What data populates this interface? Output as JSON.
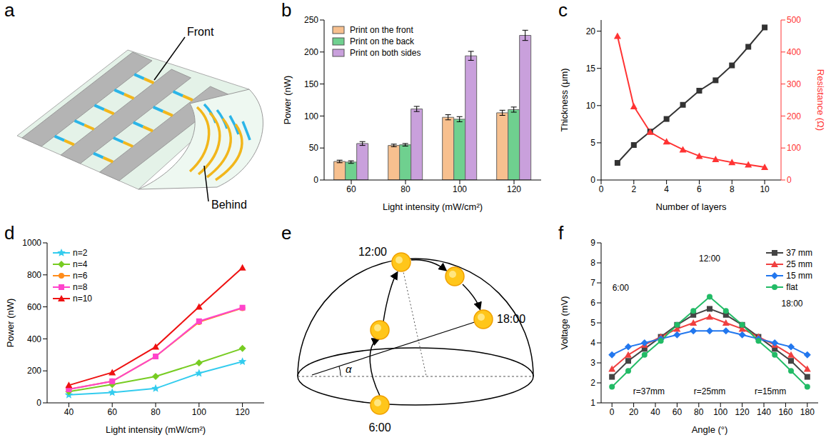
{
  "chart_data": [
    {
      "panel": "a",
      "type": "diagram",
      "labels": [
        "Front",
        "Behind"
      ]
    },
    {
      "panel": "b",
      "type": "bar",
      "categories": [
        "60",
        "80",
        "100",
        "120"
      ],
      "x_label": "Light intensity (mW/cm²)",
      "y_label": "Power (nW)",
      "ylim": [
        0,
        250
      ],
      "yticks": [
        0,
        50,
        100,
        150,
        200,
        250
      ],
      "legend": "upper left",
      "series": [
        {
          "name": "Print on the front",
          "color": "#f7c08f",
          "values": [
            29,
            54,
            98,
            105
          ],
          "errors": [
            2,
            2,
            4,
            4
          ]
        },
        {
          "name": "Print on the back",
          "color": "#6fd08f",
          "values": [
            28,
            55,
            95,
            110
          ],
          "errors": [
            2,
            2,
            4,
            4
          ]
        },
        {
          "name": "Print on both sides",
          "color": "#c9a0dc",
          "values": [
            57,
            111,
            194,
            226
          ],
          "errors": [
            3,
            4,
            7,
            8
          ]
        }
      ]
    },
    {
      "panel": "c",
      "type": "line",
      "x": [
        1,
        2,
        3,
        4,
        5,
        6,
        7,
        8,
        9,
        10
      ],
      "xlim": [
        0,
        11
      ],
      "xticks": [
        0,
        2,
        4,
        6,
        8,
        10
      ],
      "x_label": "Number of layers",
      "y_label": "Thickness (μm)",
      "y2_label": "Resistance (Ω)",
      "ylim": [
        0,
        21.5
      ],
      "yticks": [
        0,
        5,
        10,
        15,
        20
      ],
      "y2lim": [
        0,
        500
      ],
      "y2ticks": [
        0,
        100,
        200,
        300,
        400,
        500
      ],
      "series": [
        {
          "color": "#333333",
          "marker": "square",
          "values": [
            2.3,
            4.7,
            6.5,
            8.2,
            10.1,
            12.0,
            13.4,
            15.4,
            17.9,
            20.5
          ]
        },
        {
          "color": "#ff3333",
          "marker": "triangle",
          "axis": "y2",
          "values": [
            450,
            230,
            150,
            120,
            95,
            75,
            65,
            55,
            48,
            40
          ]
        }
      ]
    },
    {
      "panel": "d",
      "type": "line",
      "x": [
        40,
        60,
        80,
        100,
        120
      ],
      "xlim": [
        30,
        130
      ],
      "xticks": [
        40,
        60,
        80,
        100,
        120
      ],
      "x_label": "Light intensity (mW/cm²)",
      "y_label": "Power (nW)",
      "ylim": [
        0,
        1000
      ],
      "yticks": [
        0,
        200,
        400,
        600,
        800,
        1000
      ],
      "legend": "upper left",
      "series": [
        {
          "name": "n=2",
          "color": "#33ccee",
          "marker": "star",
          "values": [
            50,
            65,
            90,
            185,
            258
          ]
        },
        {
          "name": "n=4",
          "color": "#77cc22",
          "marker": "diamond",
          "values": [
            70,
            115,
            165,
            250,
            340
          ]
        },
        {
          "name": "n=6",
          "color": "#ff8c1a",
          "marker": "circle",
          "values": [
            85,
            135,
            290,
            505,
            592
          ]
        },
        {
          "name": "n=8",
          "color": "#ff44cc",
          "marker": "square",
          "values": [
            85,
            135,
            290,
            510,
            595
          ]
        },
        {
          "name": "n=10",
          "color": "#ee1111",
          "marker": "triangle",
          "values": [
            110,
            190,
            350,
            600,
            845
          ]
        }
      ]
    },
    {
      "panel": "e",
      "type": "diagram",
      "labels": [
        "12:00",
        "18:00",
        "6:00"
      ],
      "angle_label": "α"
    },
    {
      "panel": "f",
      "type": "line",
      "x": [
        0,
        15,
        30,
        45,
        60,
        75,
        90,
        105,
        120,
        135,
        150,
        165,
        180
      ],
      "xlim": [
        -10,
        190
      ],
      "xticks": [
        0,
        20,
        40,
        60,
        80,
        100,
        120,
        140,
        160,
        180
      ],
      "x_label": "Angle (°)",
      "y_label": "Voltage (mV)",
      "ylim": [
        1,
        9
      ],
      "yticks": [
        1,
        2,
        3,
        4,
        5,
        6,
        7,
        8,
        9
      ],
      "legend": "upper right",
      "annotations": [
        "6:00",
        "12:00",
        "18:00",
        "r=37mm",
        "r=25mm",
        "r=15mm"
      ],
      "series": [
        {
          "name": "37 mm",
          "color": "#444444",
          "marker": "square",
          "values": [
            2.3,
            3.1,
            3.7,
            4.3,
            4.9,
            5.4,
            5.7,
            5.4,
            4.9,
            4.3,
            3.7,
            3.1,
            2.3
          ]
        },
        {
          "name": "25 mm",
          "color": "#f04040",
          "marker": "triangle",
          "values": [
            2.7,
            3.4,
            3.9,
            4.3,
            4.7,
            5.0,
            5.3,
            5.0,
            4.7,
            4.3,
            3.9,
            3.4,
            2.7
          ]
        },
        {
          "name": "15 mm",
          "color": "#2277ee",
          "marker": "diamond",
          "values": [
            3.4,
            3.8,
            4.0,
            4.2,
            4.4,
            4.6,
            4.6,
            4.6,
            4.4,
            4.2,
            4.0,
            3.8,
            3.4
          ]
        },
        {
          "name": "flat",
          "color": "#22bb66",
          "marker": "circle",
          "values": [
            1.8,
            2.6,
            3.4,
            4.1,
            4.9,
            5.6,
            6.3,
            5.6,
            4.9,
            4.1,
            3.4,
            2.6,
            1.8
          ]
        }
      ]
    }
  ]
}
